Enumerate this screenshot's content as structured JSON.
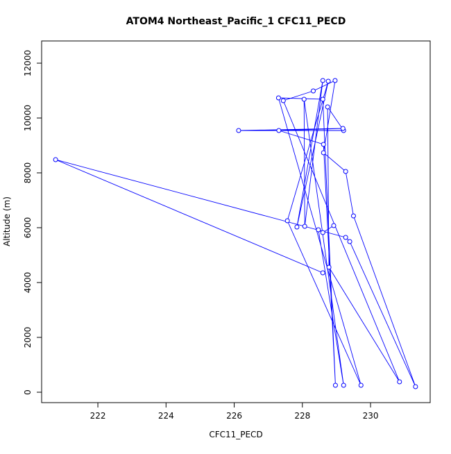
{
  "chart_data": {
    "type": "line-points",
    "title": "ATOM4 Northeast_Pacific_1 CFC11_PECD",
    "x_label": "CFC11_PECD",
    "y_label": "Altitude (m)",
    "color": "#0000ff",
    "x": [
      228.6,
      220.76,
      229.27,
      229.39,
      231.32,
      229.5,
      229.27,
      228.62,
      228.96,
      228.32,
      227.44,
      230.85,
      228.78,
      228.74,
      229.21,
      226.13,
      229.19,
      227.31,
      228.62,
      228.97,
      228.6,
      227.3,
      229.72,
      227.56,
      228.76,
      227.84,
      228.6,
      228.07,
      228.05,
      229.21,
      228.47,
      228.6,
      228.92
    ],
    "y": [
      4354,
      8481,
      5646,
      5494,
      203,
      6430,
      8051,
      8734,
      11367,
      10987,
      10633,
      380,
      4557,
      10405,
      9544,
      9544,
      9620,
      9544,
      9038,
      253,
      10684,
      10734,
      253,
      6253,
      11342,
      6025,
      11367,
      6051,
      10684,
      253,
      5924,
      5823,
      6076
    ],
    "xlim": [
      220.35,
      231.75
    ],
    "ylim": [
      -380,
      12810
    ],
    "xticks": [
      222,
      224,
      226,
      228,
      230
    ],
    "yticks": [
      0,
      2000,
      4000,
      6000,
      8000,
      10000,
      12000
    ]
  }
}
